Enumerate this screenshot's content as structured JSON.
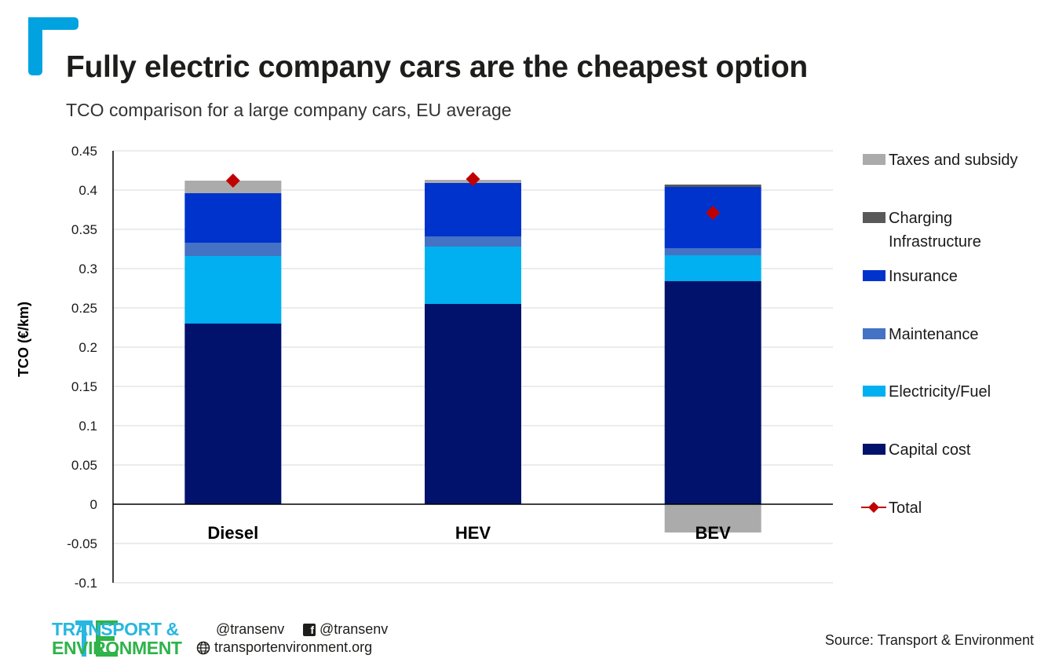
{
  "header": {
    "title": "Fully electric company cars are the cheapest option",
    "subtitle": "TCO comparison for a large company cars, EU average"
  },
  "chart_data": {
    "type": "bar",
    "stacked": true,
    "categories": [
      "Diesel",
      "HEV",
      "BEV"
    ],
    "ylabel": "TCO (€/km)",
    "ylim": [
      -0.1,
      0.45
    ],
    "yticks": [
      -0.1,
      -0.05,
      0,
      0.05,
      0.1,
      0.15,
      0.2,
      0.25,
      0.3,
      0.35,
      0.4,
      0.45
    ],
    "ytick_labels": [
      "-0.1",
      "-0.05",
      "0",
      "0.05",
      "0.1",
      "0.15",
      "0.2",
      "0.25",
      "0.3",
      "0.35",
      "0.4",
      "0.45"
    ],
    "grid": true,
    "legend_position": "right",
    "series": [
      {
        "name": "Capital cost",
        "color": "#00126b",
        "values": [
          0.23,
          0.255,
          0.284
        ]
      },
      {
        "name": "Electricity/Fuel",
        "color": "#00b0f0",
        "values": [
          0.086,
          0.073,
          0.033
        ]
      },
      {
        "name": "Maintenance",
        "color": "#4472c4",
        "values": [
          0.017,
          0.013,
          0.009
        ]
      },
      {
        "name": "Insurance",
        "color": "#0033cc",
        "values": [
          0.063,
          0.068,
          0.078
        ]
      },
      {
        "name": "Charging Infrastructure",
        "color": "#595959",
        "values": [
          0,
          0,
          0.003
        ]
      },
      {
        "name": "Taxes and subsidy",
        "color": "#ababab",
        "values": [
          0.016,
          0.004,
          -0.036
        ]
      }
    ],
    "legend_order": [
      "Taxes and subsidy",
      "Charging Infrastructure",
      "Insurance",
      "Maintenance",
      "Electricity/Fuel",
      "Capital cost",
      "Total"
    ],
    "legend_lines": {
      "Charging Infrastructure": [
        "Charging",
        "Infrastructure"
      ]
    },
    "total": {
      "name": "Total",
      "color": "#c00000",
      "values": [
        0.412,
        0.414,
        0.371
      ]
    }
  },
  "footer": {
    "brand_line1": "TRANSPORT &",
    "brand_line2": "ENVIRONMENT",
    "twitter": "@transenv",
    "facebook": "@transenv",
    "website": "transportenvironment.org",
    "source": "Source: Transport & Environment"
  },
  "colors": {
    "accent_blue": "#00a3e0",
    "brand_cyan": "#27b7e0",
    "brand_green": "#2fb34a"
  }
}
